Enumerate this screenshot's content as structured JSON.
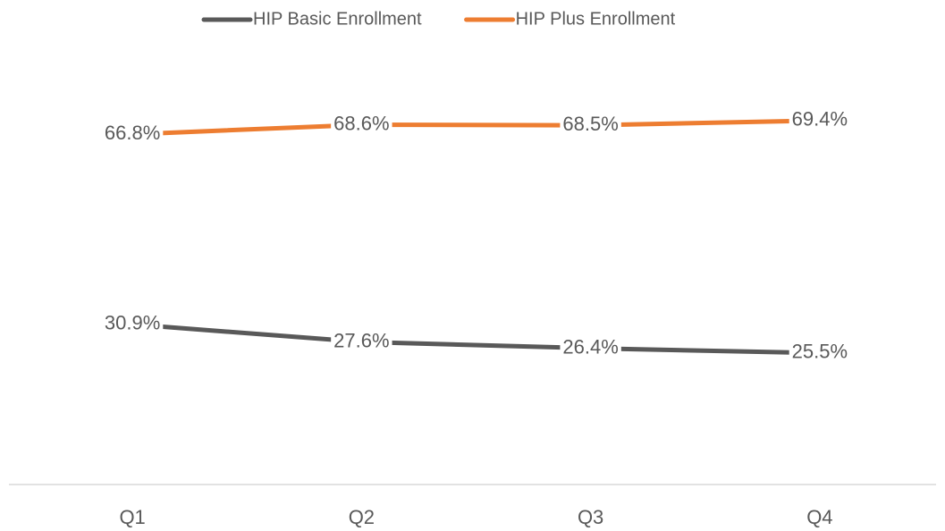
{
  "chart_data": {
    "type": "line",
    "categories": [
      "Q1",
      "Q2",
      "Q3",
      "Q4"
    ],
    "series": [
      {
        "name": "HIP Basic Enrollment",
        "color": "#595959",
        "values": [
          30.9,
          27.6,
          26.4,
          25.5
        ],
        "value_labels": [
          "30.9%",
          "27.6%",
          "26.4%",
          "25.5%"
        ]
      },
      {
        "name": "HIP Plus Enrollment",
        "color": "#ed7d31",
        "values": [
          66.8,
          68.6,
          68.5,
          69.4
        ],
        "value_labels": [
          "66.8%",
          "68.6%",
          "68.5%",
          "69.4%"
        ]
      }
    ],
    "ylim": [
      0,
      80
    ],
    "legend": "top"
  }
}
